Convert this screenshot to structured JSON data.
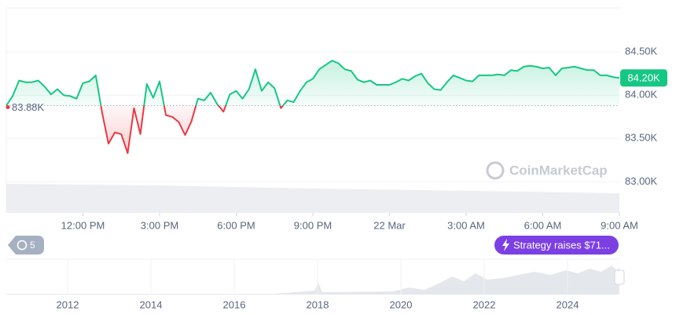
{
  "chart_data": {
    "type": "line",
    "x": [
      0,
      0.25,
      0.5,
      0.75,
      1,
      1.25,
      1.5,
      1.75,
      2,
      2.25,
      2.5,
      2.75,
      3,
      3.25,
      3.5,
      3.75,
      4,
      4.25,
      4.5,
      4.75,
      5,
      5.25,
      5.5,
      5.75,
      6,
      6.25,
      6.5,
      6.75,
      7,
      7.25,
      7.5,
      7.75,
      8,
      8.25,
      8.5,
      8.75,
      9,
      9.25,
      9.5,
      9.75,
      10,
      10.25,
      10.5,
      10.75,
      11,
      11.25,
      11.5,
      11.75,
      12,
      12.25,
      12.5,
      12.75,
      13,
      13.25,
      13.5,
      13.75,
      14,
      14.25,
      14.5,
      14.75,
      15,
      15.25,
      15.5,
      15.75,
      16,
      16.25,
      16.5,
      16.75,
      17,
      17.25,
      17.5,
      17.75,
      18,
      18.25,
      18.5,
      18.75,
      19,
      19.25,
      19.5,
      19.75,
      20,
      20.25,
      20.5,
      20.75,
      21,
      21.25,
      21.5,
      21.75,
      22,
      22.25,
      22.5,
      22.75,
      23,
      23.25,
      23.5,
      23.75,
      24
    ],
    "values": [
      83880,
      83990,
      84170,
      84150,
      84150,
      84170,
      84100,
      84010,
      84070,
      84000,
      83990,
      83960,
      84140,
      84160,
      84230,
      83800,
      83440,
      83570,
      83550,
      83330,
      83850,
      83550,
      84130,
      83970,
      84160,
      83770,
      83750,
      83690,
      83540,
      83700,
      83960,
      83940,
      84030,
      83900,
      83810,
      84010,
      84050,
      83960,
      84070,
      84300,
      84050,
      84150,
      84080,
      83850,
      83940,
      83920,
      84050,
      84150,
      84190,
      84300,
      84350,
      84400,
      84370,
      84300,
      84280,
      84180,
      84150,
      84170,
      84120,
      84120,
      84120,
      84150,
      84190,
      84170,
      84220,
      84250,
      84140,
      84070,
      84060,
      84150,
      84230,
      84200,
      84170,
      84160,
      84230,
      84230,
      84230,
      84240,
      84230,
      84290,
      84280,
      84330,
      84340,
      84330,
      84310,
      84320,
      84230,
      84310,
      84320,
      84330,
      84310,
      84290,
      84290,
      84230,
      84230,
      84210,
      84200
    ],
    "xlim": [
      0,
      24
    ],
    "xticks": [
      {
        "value": 3,
        "label": "12:00 PM"
      },
      {
        "value": 6,
        "label": "3:00 PM"
      },
      {
        "value": 9,
        "label": "6:00 PM"
      },
      {
        "value": 12,
        "label": "9:00 PM"
      },
      {
        "value": 15,
        "label": "22 Mar"
      },
      {
        "value": 18,
        "label": "3:00 AM"
      },
      {
        "value": 21,
        "label": "6:00 AM"
      },
      {
        "value": 24,
        "label": "9:00 AM"
      }
    ],
    "ylim": [
      82640,
      85010
    ],
    "yticks": [
      {
        "value": 83000,
        "label": "83.00K"
      },
      {
        "value": 83500,
        "label": "83.50K"
      },
      {
        "value": 84000,
        "label": "84.00K"
      },
      {
        "value": 84500,
        "label": "84.50K"
      }
    ],
    "baseline": {
      "value": 83880,
      "label": "83.88K"
    },
    "price_tag": "84.20K",
    "up_color": "#16c784",
    "down_color": "#ea3943",
    "grid": true
  },
  "watermark": "CoinMarketCap",
  "history_badge": "5",
  "event_badge": "Strategy raises $71...",
  "navigator": {
    "labels": [
      "2012",
      "2014",
      "2016",
      "2018",
      "2020",
      "2022",
      "2024"
    ]
  }
}
